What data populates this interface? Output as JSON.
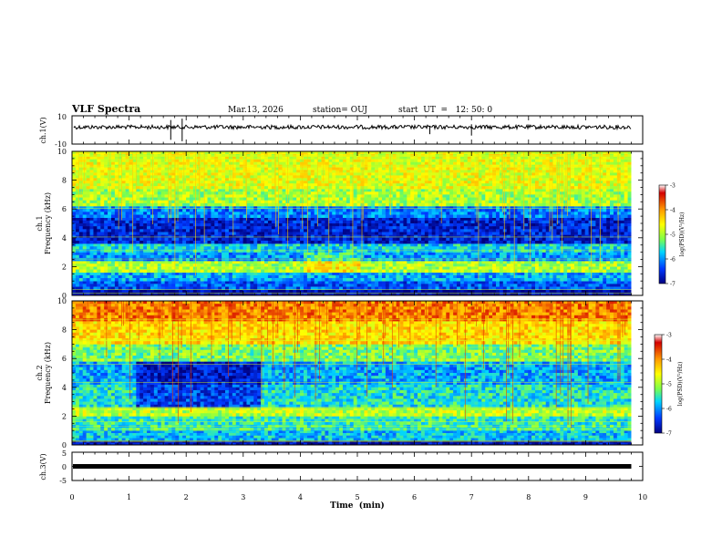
{
  "header": {
    "title": "VLF Spectra",
    "date": "Mar.13, 2026",
    "station": "station= OUJ",
    "start_ut": "start  UT  =   12: 50: 0"
  },
  "colorbar": {
    "label": "log(PSD)(V²/Hz)",
    "ticks": [
      "-3",
      "-4",
      "-5",
      "-6",
      "-7"
    ],
    "stops": [
      "#ffffff",
      "#d40000",
      "#ff9a00",
      "#ffff00",
      "#7dff4a",
      "#00d5ff",
      "#0038ff",
      "#000080"
    ]
  },
  "chart_data": [
    {
      "type": "line",
      "name": "ch1-waveform",
      "ylabel": "ch.1(V)",
      "ylim": [
        -10,
        10
      ],
      "yticks": [
        "10",
        "-10"
      ],
      "x_range_min": [
        0,
        9.8
      ],
      "baseline_v": 2,
      "band_v": 1,
      "spikes": [
        {
          "x": 1.73,
          "v": 7
        },
        {
          "x": 1.93,
          "v": 8
        },
        {
          "x": 7.0,
          "v": 4
        },
        {
          "x": 6.27,
          "v": 3
        }
      ]
    },
    {
      "type": "heatmap",
      "name": "ch1-spectrogram",
      "ylabel": "ch.1\nFrequency (kHz)",
      "xlim": [
        0,
        10
      ],
      "data_x_max": 9.8,
      "ylim": [
        0,
        10
      ],
      "yticks": [
        "0",
        "2",
        "4",
        "6",
        "8",
        "10"
      ],
      "z_range": [
        -7,
        -3
      ],
      "bands": [
        {
          "f": [
            0,
            0.4
          ],
          "level": -6.9
        },
        {
          "f": [
            0.4,
            1.0
          ],
          "level": -6.3
        },
        {
          "f": [
            1.0,
            1.6
          ],
          "level": -5.9
        },
        {
          "f": [
            1.6,
            2.4
          ],
          "level": -5.0
        },
        {
          "f": [
            2.4,
            3.0
          ],
          "level": -6.0
        },
        {
          "f": [
            3.0,
            3.6
          ],
          "level": -5.7
        },
        {
          "f": [
            3.6,
            5.4
          ],
          "level": -6.6
        },
        {
          "f": [
            5.4,
            6.2
          ],
          "level": -6.1
        },
        {
          "f": [
            6.2,
            7.4
          ],
          "level": -5.0
        },
        {
          "f": [
            7.4,
            10
          ],
          "level": -4.7
        }
      ]
    },
    {
      "type": "heatmap",
      "name": "ch2-spectrogram",
      "ylabel": "ch.2\nFrequency (kHz)",
      "xlim": [
        0,
        10
      ],
      "data_x_max": 9.8,
      "ylim": [
        0,
        10
      ],
      "yticks": [
        "0",
        "2",
        "4",
        "6",
        "8",
        "10"
      ],
      "z_range": [
        -7,
        -3
      ],
      "bands": [
        {
          "f": [
            0,
            0.3
          ],
          "level": -6.8
        },
        {
          "f": [
            0.3,
            1.0
          ],
          "level": -5.8
        },
        {
          "f": [
            1.0,
            2.0
          ],
          "level": -5.5
        },
        {
          "f": [
            2.0,
            2.6
          ],
          "level": -4.9
        },
        {
          "f": [
            2.6,
            4.2
          ],
          "level": -5.6
        },
        {
          "f": [
            4.2,
            5.8
          ],
          "level": -5.9
        },
        {
          "f": [
            5.8,
            7.0
          ],
          "level": -5.2
        },
        {
          "f": [
            7.0,
            8.6
          ],
          "level": -4.4
        },
        {
          "f": [
            8.6,
            10
          ],
          "level": -3.9
        }
      ]
    },
    {
      "type": "line",
      "name": "ch3-waveform",
      "ylabel": "ch.3(V)",
      "ylim": [
        -5,
        5
      ],
      "yticks": [
        "5",
        "0",
        "-5"
      ],
      "x_range_min": [
        0,
        9.8
      ],
      "baseline_v": 0,
      "band_v": 0.6
    }
  ],
  "xaxis": {
    "label": "Time  (min)",
    "ticks": [
      "0",
      "1",
      "2",
      "3",
      "4",
      "5",
      "6",
      "7",
      "8",
      "9",
      "10"
    ],
    "xlim": [
      0,
      10
    ]
  }
}
